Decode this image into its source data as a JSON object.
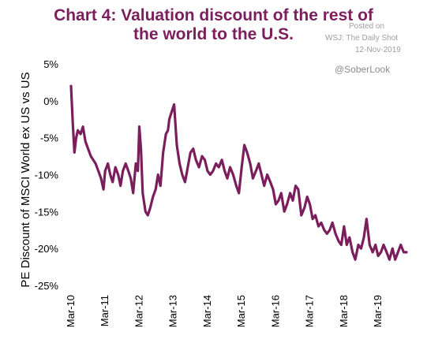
{
  "title_lines": [
    "Chart 4: Valuation discount of the rest of",
    "the world to the U.S."
  ],
  "source": {
    "posted_on": "Posted on",
    "publisher": "WSJ: The Daily Shot",
    "date": "12-Nov-2019",
    "handle": "@SoberLook"
  },
  "colors": {
    "series": "#7b1f5c",
    "title": "#7b1f5c",
    "note": "#9e9e9e"
  },
  "chart_data": {
    "type": "line",
    "title": "Chart 4: Valuation discount of the rest of the world to the U.S.",
    "xlabel": "",
    "ylabel": "PE Discount of MSCI World ex US vs US",
    "ylim": [
      -25,
      5
    ],
    "yticks": [
      5,
      0,
      -5,
      -10,
      -15,
      -20,
      -25
    ],
    "ytick_labels": [
      "5%",
      "0%",
      "-5%",
      "-10%",
      "-15%",
      "-20%",
      "-25%"
    ],
    "xlim": [
      2010.0,
      2019.83
    ],
    "xticks": [
      2010,
      2011,
      2012,
      2013,
      2014,
      2015,
      2016,
      2017,
      2018,
      2019
    ],
    "xtick_labels": [
      "Mar-10",
      "Mar-11",
      "Mar-12",
      "Mar-13",
      "Mar-14",
      "Mar-15",
      "Mar-16",
      "Mar-17",
      "Mar-18",
      "Mar-19"
    ],
    "grid": false,
    "legend": "none",
    "series": [
      {
        "x": [
          2010.0,
          2010.05,
          2010.1,
          2010.15,
          2010.2,
          2010.28,
          2010.35,
          2010.42,
          2010.5,
          2010.58,
          2010.65,
          2010.72,
          2010.8,
          2010.88,
          2010.95,
          2011.0,
          2011.08,
          2011.15,
          2011.22,
          2011.3,
          2011.38,
          2011.45,
          2011.52,
          2011.6,
          2011.68,
          2011.75,
          2011.82,
          2011.9,
          2011.96,
          2012.0,
          2012.05,
          2012.1,
          2012.18,
          2012.25,
          2012.32,
          2012.4,
          2012.48,
          2012.55,
          2012.62,
          2012.7,
          2012.78,
          2012.84,
          2012.88,
          2012.95,
          2013.02,
          2013.1,
          2013.18,
          2013.26,
          2013.34,
          2013.42,
          2013.5,
          2013.58,
          2013.66,
          2013.75,
          2013.84,
          2013.92,
          2014.0,
          2014.08,
          2014.16,
          2014.25,
          2014.33,
          2014.42,
          2014.5,
          2014.58,
          2014.66,
          2014.75,
          2014.84,
          2014.92,
          2015.0,
          2015.08,
          2015.16,
          2015.25,
          2015.33,
          2015.42,
          2015.5,
          2015.58,
          2015.66,
          2015.75,
          2015.84,
          2015.92,
          2016.0,
          2016.08,
          2016.16,
          2016.25,
          2016.33,
          2016.42,
          2016.5,
          2016.58,
          2016.66,
          2016.75,
          2016.84,
          2016.92,
          2017.0,
          2017.08,
          2017.16,
          2017.25,
          2017.33,
          2017.42,
          2017.5,
          2017.58,
          2017.66,
          2017.75,
          2017.84,
          2017.92,
          2018.0,
          2018.08,
          2018.16,
          2018.25,
          2018.33,
          2018.42,
          2018.5,
          2018.58,
          2018.66,
          2018.75,
          2018.84,
          2018.92,
          2019.0,
          2019.08,
          2019.16,
          2019.25,
          2019.33,
          2019.42,
          2019.5,
          2019.58,
          2019.66,
          2019.75,
          2019.83
        ],
        "y": [
          2.0,
          -3.0,
          -7.0,
          -5.0,
          -4.0,
          -4.5,
          -3.5,
          -5.5,
          -6.5,
          -7.5,
          -8.0,
          -8.5,
          -9.5,
          -10.5,
          -12.0,
          -9.5,
          -8.5,
          -10.0,
          -11.0,
          -9.0,
          -10.0,
          -11.5,
          -9.5,
          -8.5,
          -9.5,
          -10.5,
          -12.5,
          -8.5,
          -9.5,
          -3.5,
          -6.5,
          -12.5,
          -15.0,
          -15.5,
          -14.5,
          -13.0,
          -12.0,
          -10.0,
          -11.5,
          -7.0,
          -4.5,
          -4.0,
          -2.5,
          -1.5,
          -0.5,
          -6.0,
          -8.5,
          -10.0,
          -11.0,
          -9.0,
          -7.0,
          -6.5,
          -8.0,
          -9.0,
          -7.5,
          -8.0,
          -9.5,
          -10.0,
          -9.5,
          -8.5,
          -9.0,
          -8.0,
          -9.5,
          -10.5,
          -9.0,
          -10.0,
          -11.5,
          -12.5,
          -9.0,
          -6.0,
          -7.0,
          -8.5,
          -10.5,
          -9.5,
          -8.5,
          -10.0,
          -11.5,
          -10.0,
          -11.0,
          -12.0,
          -14.0,
          -13.5,
          -12.5,
          -15.0,
          -14.0,
          -12.5,
          -13.5,
          -11.5,
          -12.0,
          -15.5,
          -14.5,
          -13.0,
          -14.0,
          -16.0,
          -15.5,
          -17.0,
          -16.5,
          -17.5,
          -18.0,
          -17.5,
          -16.5,
          -18.0,
          -19.0,
          -19.5,
          -17.0,
          -19.5,
          -18.5,
          -20.5,
          -21.5,
          -19.5,
          -20.0,
          -18.5,
          -16.0,
          -19.5,
          -20.5,
          -19.5,
          -21.0,
          -20.5,
          -19.5,
          -20.5,
          -21.5,
          -20.0,
          -21.5,
          -20.5,
          -19.5,
          -20.5,
          -20.5
        ]
      }
    ]
  }
}
